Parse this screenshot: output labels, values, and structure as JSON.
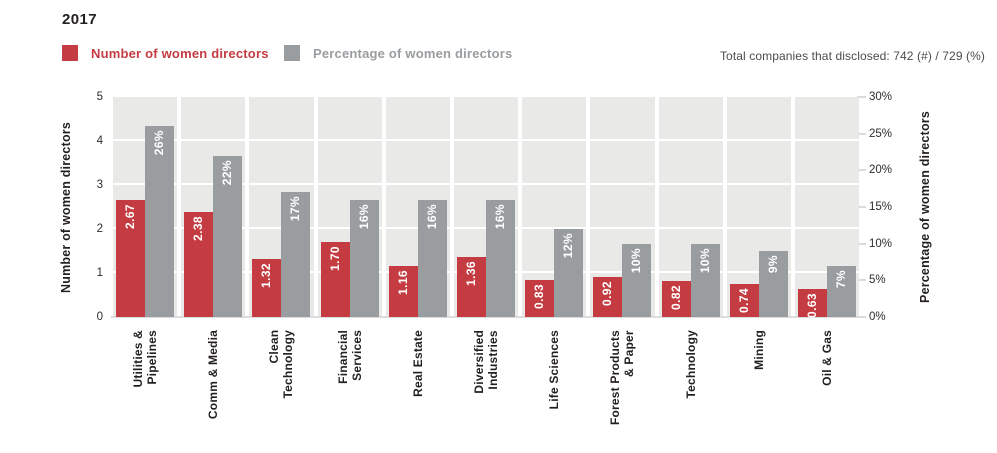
{
  "title": "2017",
  "legend": {
    "items": [
      {
        "label": "Number of women directors",
        "color": "#c43c41"
      },
      {
        "label": "Percentage of women directors",
        "color": "#999da0"
      }
    ]
  },
  "disclosure_note": "Total companies that disclosed: 742 (#) / 729 (%)",
  "chart_data": {
    "type": "bar",
    "title": "2017",
    "legend_position": "top",
    "categories": [
      "Utilities &\nPipelines",
      "Comm & Media",
      "Clean\nTechnology",
      "Financial\nServices",
      "Real Estate",
      "Diversified\nIndustries",
      "Life Sciences",
      "Forest Products\n& Paper",
      "Technology",
      "Mining",
      "Oil & Gas"
    ],
    "series": [
      {
        "name": "Number of women directors",
        "axis": "left",
        "color": "#c43c41",
        "values": [
          2.67,
          2.38,
          1.32,
          1.7,
          1.16,
          1.36,
          0.83,
          0.92,
          0.82,
          0.74,
          0.63
        ],
        "data_labels": [
          "2.67",
          "2.38",
          "1.32",
          "1.70",
          "1.16",
          "1.36",
          "0.83",
          "0.92",
          "0.82",
          "0.74",
          "0.63"
        ]
      },
      {
        "name": "Percentage of women directors",
        "axis": "right",
        "color": "#999da0",
        "values": [
          26,
          22,
          17,
          16,
          16,
          16,
          12,
          10,
          10,
          9,
          7
        ],
        "data_labels": [
          "26%",
          "22%",
          "17%",
          "16%",
          "16%",
          "16%",
          "12%",
          "10%",
          "10%",
          "9%",
          "7%"
        ]
      }
    ],
    "axes": {
      "left": {
        "label": "Number of women directors",
        "min": 0,
        "max": 5,
        "ticks": [
          "0",
          "1",
          "2",
          "3",
          "4",
          "5"
        ]
      },
      "right": {
        "label": "Percentage of women directors",
        "min": 0,
        "max": 30,
        "ticks": [
          "0%",
          "5%",
          "10%",
          "15%",
          "20%",
          "25%",
          "30%"
        ]
      }
    },
    "gridlines": {
      "left_axis_values": [
        1,
        2,
        3,
        4
      ],
      "color": "#ffffff"
    },
    "plot_band_color": "#e9e9e8"
  }
}
